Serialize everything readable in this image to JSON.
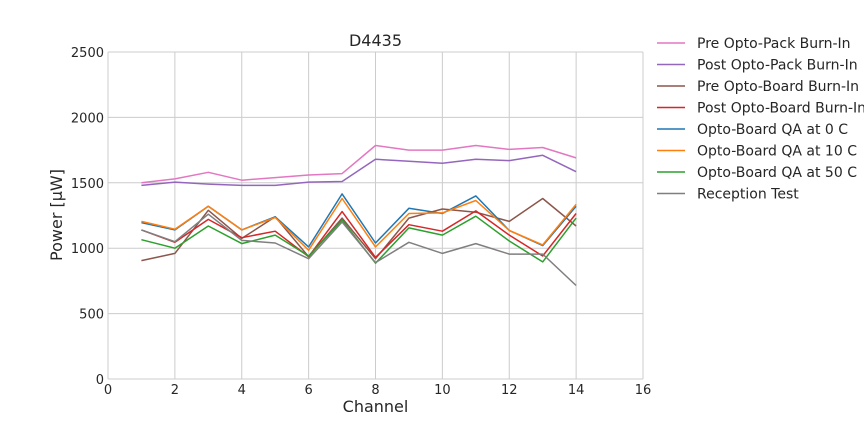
{
  "chart_data": {
    "type": "line",
    "title": "D4435",
    "xlabel": "Channel",
    "ylabel": "Power [μW]",
    "xlim": [
      0,
      16
    ],
    "ylim": [
      0,
      2500
    ],
    "xticks": [
      0,
      2,
      4,
      6,
      8,
      10,
      12,
      14,
      16
    ],
    "yticks": [
      0,
      500,
      1000,
      1500,
      2000,
      2500
    ],
    "grid": true,
    "legend_position": "outside-right",
    "x": [
      1,
      2,
      3,
      4,
      5,
      6,
      7,
      8,
      9,
      10,
      11,
      12,
      13,
      14
    ],
    "series": [
      {
        "name": "Pre Opto-Pack Burn-In",
        "color": "#e377c2",
        "values": [
          1500,
          1530,
          1580,
          1520,
          1540,
          1560,
          1570,
          1785,
          1750,
          1750,
          1785,
          1755,
          1770,
          1690
        ]
      },
      {
        "name": "Post Opto-Pack Burn-In",
        "color": "#9467bd",
        "values": [
          1480,
          1505,
          1490,
          1480,
          1480,
          1505,
          1510,
          1680,
          1665,
          1650,
          1680,
          1670,
          1710,
          1585
        ]
      },
      {
        "name": "Pre Opto-Board Burn-In",
        "color": "#8c564b",
        "values": [
          905,
          960,
          1290,
          1075,
          1240,
          935,
          1230,
          920,
          1230,
          1300,
          1275,
          1205,
          1380,
          1170
        ]
      },
      {
        "name": "Post Opto-Board Burn-In",
        "color": "#d62728",
        "values": [
          1140,
          1045,
          1220,
          1080,
          1130,
          935,
          1280,
          930,
          1180,
          1130,
          1285,
          1100,
          940,
          1265
        ]
      },
      {
        "name": "Opto-Board QA at 0 C",
        "color": "#1f77b4",
        "values": [
          1195,
          1140,
          1320,
          1140,
          1240,
          1010,
          1415,
          1040,
          1305,
          1265,
          1400,
          1135,
          1020,
          1320
        ]
      },
      {
        "name": "Opto-Board QA at 10 C",
        "color": "#ff7f0e",
        "values": [
          1205,
          1145,
          1320,
          1140,
          1235,
          985,
          1380,
          1010,
          1265,
          1270,
          1365,
          1135,
          1025,
          1335
        ]
      },
      {
        "name": "Opto-Board QA at 50 C",
        "color": "#2ca02c",
        "values": [
          1065,
          1000,
          1170,
          1035,
          1100,
          940,
          1215,
          885,
          1155,
          1100,
          1245,
          1055,
          895,
          1230
        ]
      },
      {
        "name": "Reception Test",
        "color": "#7f7f7f",
        "values": [
          1140,
          1050,
          1260,
          1060,
          1040,
          920,
          1200,
          890,
          1045,
          960,
          1035,
          955,
          955,
          715
        ]
      }
    ]
  }
}
